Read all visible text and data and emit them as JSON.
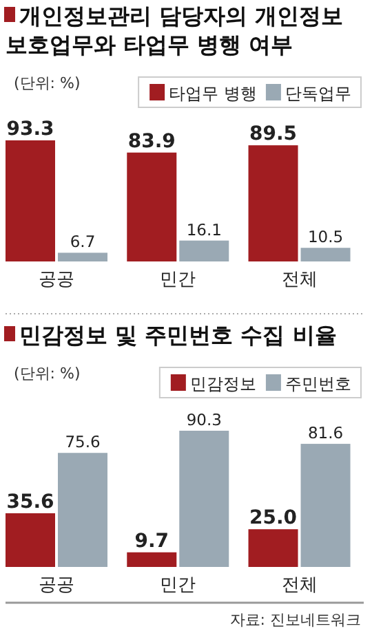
{
  "chart_data": [
    {
      "type": "bar",
      "title": "개인정보관리 담당자의 개인정보 보호업무와 타업무 병행 여부",
      "subtitle": "(단위: %)",
      "categories": [
        "공공",
        "민간",
        "전체"
      ],
      "tick_labels": "x",
      "legend": "top right",
      "series": [
        {
          "name": "타업무 병행",
          "color": "#a11d21",
          "values": [
            93.3,
            83.9,
            89.5
          ],
          "value_labels": [
            "93.3",
            "83.9",
            "89.5"
          ]
        },
        {
          "name": "단독업무",
          "color": "#9aa9b4",
          "values": [
            6.7,
            16.1,
            10.5
          ],
          "value_labels": [
            "6.7",
            "16.1",
            "10.5"
          ]
        }
      ]
    },
    {
      "type": "bar",
      "title": "민감정보 및 주민번호 수집 비율",
      "subtitle": "(단위: %)",
      "categories": [
        "공공",
        "민간",
        "전체"
      ],
      "tick_labels": "x",
      "legend": "top right",
      "annotations": [
        "자료: 진보네트워크"
      ],
      "series": [
        {
          "name": "민감정보",
          "color": "#a11d21",
          "values": [
            35.6,
            9.7,
            25.0
          ],
          "value_labels": [
            "35.6",
            "9.7",
            "25.0"
          ]
        },
        {
          "name": "주민번호",
          "color": "#9aa9b4",
          "values": [
            75.6,
            90.3,
            81.6
          ],
          "value_labels": [
            "75.6",
            "90.3",
            "81.6"
          ]
        }
      ]
    }
  ]
}
